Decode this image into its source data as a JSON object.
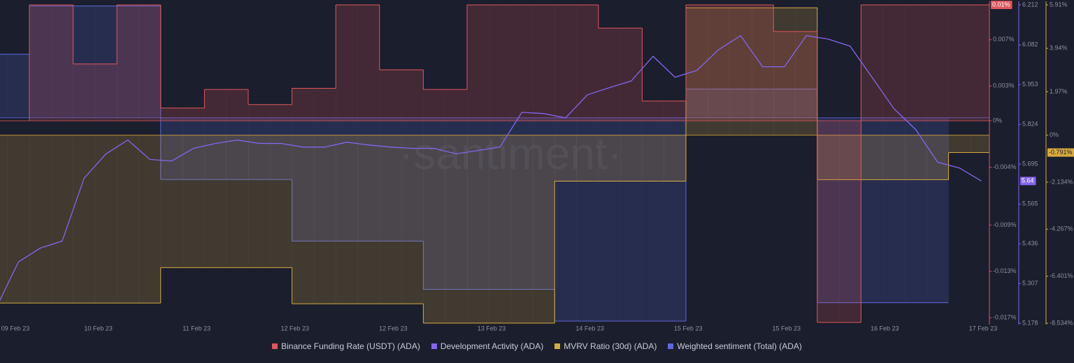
{
  "chart_data": {
    "type": "multi_axis",
    "watermark": "·santiment·",
    "xticks": [
      "09 Feb 23",
      "10 Feb 23",
      "11 Feb 23",
      "12 Feb 23",
      "12 Feb 23",
      "13 Feb 23",
      "14 Feb 23",
      "15 Feb 23",
      "15 Feb 23",
      "16 Feb 23",
      "17 Feb 23"
    ],
    "series": [
      {
        "name": "Binance Funding Rate (USDT) (ADA)",
        "color": "#e0575b",
        "step": true,
        "ylim": [
          -0.01747,
          0.01
        ],
        "yticks": [
          {
            "value": 0.007,
            "label": "0.007%"
          },
          {
            "value": 0.003,
            "label": "0.003%"
          },
          {
            "value": 0,
            "label": "0%"
          },
          {
            "value": -0.004,
            "label": "-0.004%"
          },
          {
            "value": -0.009,
            "label": "-0.009%"
          },
          {
            "value": -0.013,
            "label": "-0.013%"
          },
          {
            "value": -0.017,
            "label": "-0.017%"
          }
        ],
        "current": {
          "value": 0.01,
          "label": "0.01%"
        },
        "values": [
          null,
          null,
          0.01,
          0.01,
          0.0049,
          0.0049,
          0.01,
          0.01,
          0.0011,
          0.0011,
          0.0027,
          0.0027,
          0.0014,
          0.0014,
          0.0028,
          0.0028,
          0.01,
          0.01,
          0.0044,
          0.0044,
          0.0027,
          0.0027,
          0.01,
          0.01,
          0.01,
          0.01,
          0.01,
          0.01,
          0.008,
          0.008,
          0.0017,
          0.0017,
          0.01,
          0.01,
          0.01,
          0.01,
          0.0077,
          0.0077,
          -0.0174,
          -0.0174,
          0.01,
          0.01,
          0.01,
          0.01,
          0.01,
          0.01
        ]
      },
      {
        "name": "Development Activity (ADA)",
        "color": "#8466f0",
        "step": false,
        "ylim": [
          5.178,
          6.212
        ],
        "yticks": [
          6.212,
          6.082,
          5.953,
          5.824,
          5.695,
          5.565,
          5.436,
          5.307,
          5.178
        ],
        "values": [
          5.23,
          5.377,
          5.422,
          5.445,
          5.649,
          5.728,
          5.773,
          5.71,
          5.705,
          5.746,
          5.762,
          5.773,
          5.762,
          5.762,
          5.75,
          5.75,
          5.766,
          5.757,
          5.75,
          5.746,
          5.746,
          5.728,
          5.739,
          5.75,
          5.863,
          5.859,
          5.845,
          5.92,
          5.943,
          5.965,
          6.045,
          5.977,
          5.999,
          6.067,
          6.112,
          6.011,
          6.011,
          6.112,
          6.101,
          6.078,
          5.977,
          5.875,
          5.807,
          5.701,
          5.682,
          5.64
        ]
      },
      {
        "name": "MVRV Ratio (30d) (ADA)",
        "color": "#d9aa3f",
        "step": true,
        "ylim": [
          -8.534,
          5.91
        ],
        "yticks": [
          {
            "value": 5.91,
            "label": "5.91%"
          },
          {
            "value": 3.94,
            "label": "3.94%"
          },
          {
            "value": 1.97,
            "label": "1.97%"
          },
          {
            "value": 0,
            "label": "0%"
          },
          {
            "value": -2.134,
            "label": "-2.134%"
          },
          {
            "value": -4.267,
            "label": "-4.267%"
          },
          {
            "value": -6.401,
            "label": "-6.401%"
          },
          {
            "value": -8.534,
            "label": "-8.534%"
          }
        ],
        "current": {
          "value": -0.791,
          "label": "-0.791%"
        },
        "values": [
          -7.62,
          -7.62,
          -7.62,
          -7.62,
          -7.62,
          -7.62,
          -7.62,
          -7.62,
          -6.01,
          -6.01,
          -6.01,
          -6.01,
          -6.01,
          -6.01,
          -7.65,
          -7.65,
          -7.65,
          -7.65,
          -7.65,
          -7.65,
          -8.53,
          -8.53,
          -8.53,
          -8.53,
          -8.53,
          -8.53,
          -2.09,
          -2.09,
          -2.09,
          -2.09,
          -2.09,
          -2.09,
          5.78,
          5.78,
          5.78,
          5.78,
          5.78,
          5.78,
          -2.02,
          -2.02,
          -2.02,
          -2.02,
          -2.02,
          -2.02,
          -0.791,
          -0.791
        ]
      },
      {
        "name": "Weighted sentiment (Total) (ADA)",
        "color": "#5b68dd",
        "step": true,
        "ylim": [
          -2,
          1.1
        ],
        "values": [
          0.62,
          0.62,
          1.09,
          1.09,
          1.09,
          1.09,
          1.09,
          1.09,
          -0.6,
          -0.6,
          -0.6,
          -0.6,
          -0.6,
          -0.6,
          -1.2,
          -1.2,
          -1.2,
          -1.2,
          -1.2,
          -1.2,
          -1.67,
          -1.67,
          -1.67,
          -1.67,
          -1.67,
          -1.67,
          -1.98,
          -1.98,
          -1.98,
          -1.98,
          -1.98,
          -1.98,
          0.28,
          0.28,
          0.28,
          0.28,
          0.28,
          0.28,
          -1.8,
          -1.8,
          -1.8,
          -1.8,
          -1.8,
          -1.8,
          null,
          null
        ]
      }
    ]
  }
}
